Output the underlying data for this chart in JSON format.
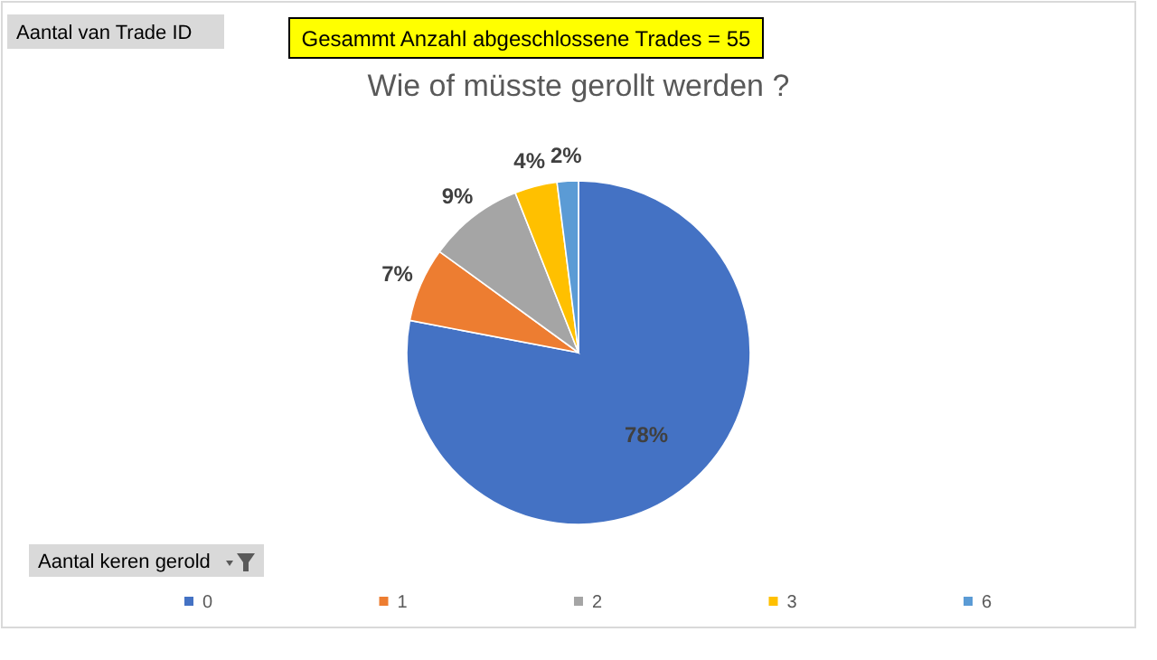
{
  "chart_data": {
    "type": "pie",
    "title": "Wie of müsste gerollt werden ?",
    "legend_title": "Aantal keren gerold",
    "categories": [
      "0",
      "1",
      "2",
      "3",
      "6"
    ],
    "values": [
      78,
      7,
      9,
      4,
      2
    ],
    "colors": [
      "#4472c4",
      "#ed7d31",
      "#a5a5a5",
      "#ffc000",
      "#5b9bd5"
    ],
    "value_labels": [
      "78%",
      "7%",
      "9%",
      "4%",
      "2%"
    ],
    "legend": "bottom",
    "annotations": [
      "Gesammt Anzahl abgeschlossene Trades = 55",
      "Aantal van Trade ID"
    ]
  }
}
